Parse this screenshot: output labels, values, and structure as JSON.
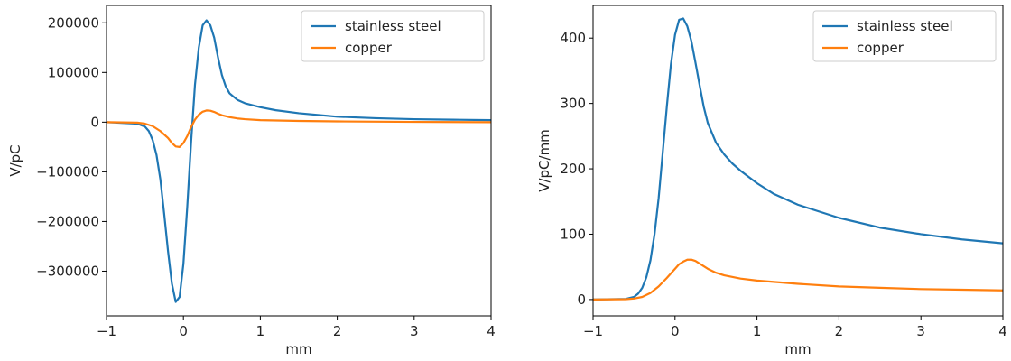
{
  "chart_data": [
    {
      "type": "line",
      "title": "",
      "xlabel": "mm",
      "ylabel": "V/pC",
      "xlim": [
        -1,
        4
      ],
      "ylim": [
        -390000,
        235000
      ],
      "xticks": [
        -1,
        0,
        1,
        2,
        3,
        4
      ],
      "xtick_labels": [
        "−1",
        "0",
        "1",
        "2",
        "3",
        "4"
      ],
      "yticks": [
        -300000,
        -200000,
        -100000,
        0,
        100000,
        200000
      ],
      "ytick_labels": [
        "−300000",
        "−200000",
        "−100000",
        "0",
        "100000",
        "200000"
      ],
      "legend": "top-right",
      "grid": false,
      "series": [
        {
          "name": "stainless steel",
          "color": "#1f77b4",
          "x": [
            -1.0,
            -0.6,
            -0.5,
            -0.45,
            -0.4,
            -0.35,
            -0.3,
            -0.25,
            -0.2,
            -0.15,
            -0.1,
            -0.05,
            0.0,
            0.05,
            0.1,
            0.15,
            0.2,
            0.25,
            0.3,
            0.35,
            0.4,
            0.45,
            0.5,
            0.55,
            0.6,
            0.7,
            0.8,
            1.0,
            1.2,
            1.5,
            2.0,
            2.5,
            3.0,
            3.5,
            4.0
          ],
          "y": [
            0,
            -3000,
            -9000,
            -18000,
            -36000,
            -66000,
            -115000,
            -185000,
            -260000,
            -325000,
            -362000,
            -352000,
            -285000,
            -170000,
            -40000,
            75000,
            150000,
            195000,
            205000,
            195000,
            170000,
            130000,
            95000,
            72000,
            58000,
            45000,
            38000,
            30000,
            24000,
            18000,
            11000,
            8000,
            6000,
            5000,
            4000
          ]
        },
        {
          "name": "copper",
          "color": "#ff7f0e",
          "x": [
            -1.0,
            -0.6,
            -0.5,
            -0.4,
            -0.3,
            -0.2,
            -0.15,
            -0.1,
            -0.05,
            0.0,
            0.05,
            0.1,
            0.15,
            0.2,
            0.25,
            0.3,
            0.35,
            0.4,
            0.45,
            0.5,
            0.6,
            0.7,
            0.8,
            1.0,
            1.5,
            2.0,
            3.0,
            4.0
          ],
          "y": [
            0,
            -1000,
            -3000,
            -8000,
            -18000,
            -32000,
            -42000,
            -49000,
            -50000,
            -42000,
            -28000,
            -10000,
            5000,
            15000,
            21000,
            23500,
            23000,
            20500,
            17000,
            14000,
            10000,
            7500,
            6000,
            4000,
            2500,
            1500,
            500,
            0
          ]
        }
      ]
    },
    {
      "type": "line",
      "title": "",
      "xlabel": "mm",
      "ylabel": "V/pC/mm",
      "xlim": [
        -1,
        4
      ],
      "ylim": [
        -25,
        450
      ],
      "xticks": [
        -1,
        0,
        1,
        2,
        3,
        4
      ],
      "xtick_labels": [
        "−1",
        "0",
        "1",
        "2",
        "3",
        "4"
      ],
      "yticks": [
        0,
        100,
        200,
        300,
        400
      ],
      "ytick_labels": [
        "0",
        "100",
        "200",
        "300",
        "400"
      ],
      "legend": "top-right",
      "grid": false,
      "series": [
        {
          "name": "stainless steel",
          "color": "#1f77b4",
          "x": [
            -1.0,
            -0.6,
            -0.5,
            -0.45,
            -0.4,
            -0.35,
            -0.3,
            -0.25,
            -0.2,
            -0.15,
            -0.1,
            -0.05,
            0.0,
            0.05,
            0.1,
            0.15,
            0.2,
            0.25,
            0.3,
            0.35,
            0.4,
            0.5,
            0.6,
            0.7,
            0.8,
            1.0,
            1.2,
            1.5,
            2.0,
            2.5,
            3.0,
            3.5,
            4.0
          ],
          "y": [
            0,
            1,
            4,
            9,
            18,
            34,
            60,
            100,
            155,
            225,
            295,
            360,
            405,
            428,
            430,
            418,
            395,
            362,
            328,
            295,
            270,
            240,
            222,
            208,
            197,
            178,
            162,
            145,
            125,
            110,
            100,
            92,
            86
          ]
        },
        {
          "name": "copper",
          "color": "#ff7f0e",
          "x": [
            -1.0,
            -0.6,
            -0.5,
            -0.4,
            -0.3,
            -0.2,
            -0.1,
            0.0,
            0.05,
            0.1,
            0.15,
            0.2,
            0.25,
            0.3,
            0.35,
            0.4,
            0.5,
            0.6,
            0.8,
            1.0,
            1.5,
            2.0,
            2.5,
            3.0,
            3.5,
            4.0
          ],
          "y": [
            0,
            0.5,
            1.5,
            4,
            10,
            20,
            33,
            47,
            54,
            58,
            61,
            61,
            59,
            55,
            51,
            47,
            41,
            37,
            32,
            29,
            24,
            20,
            18,
            16,
            15,
            14
          ]
        }
      ]
    }
  ]
}
